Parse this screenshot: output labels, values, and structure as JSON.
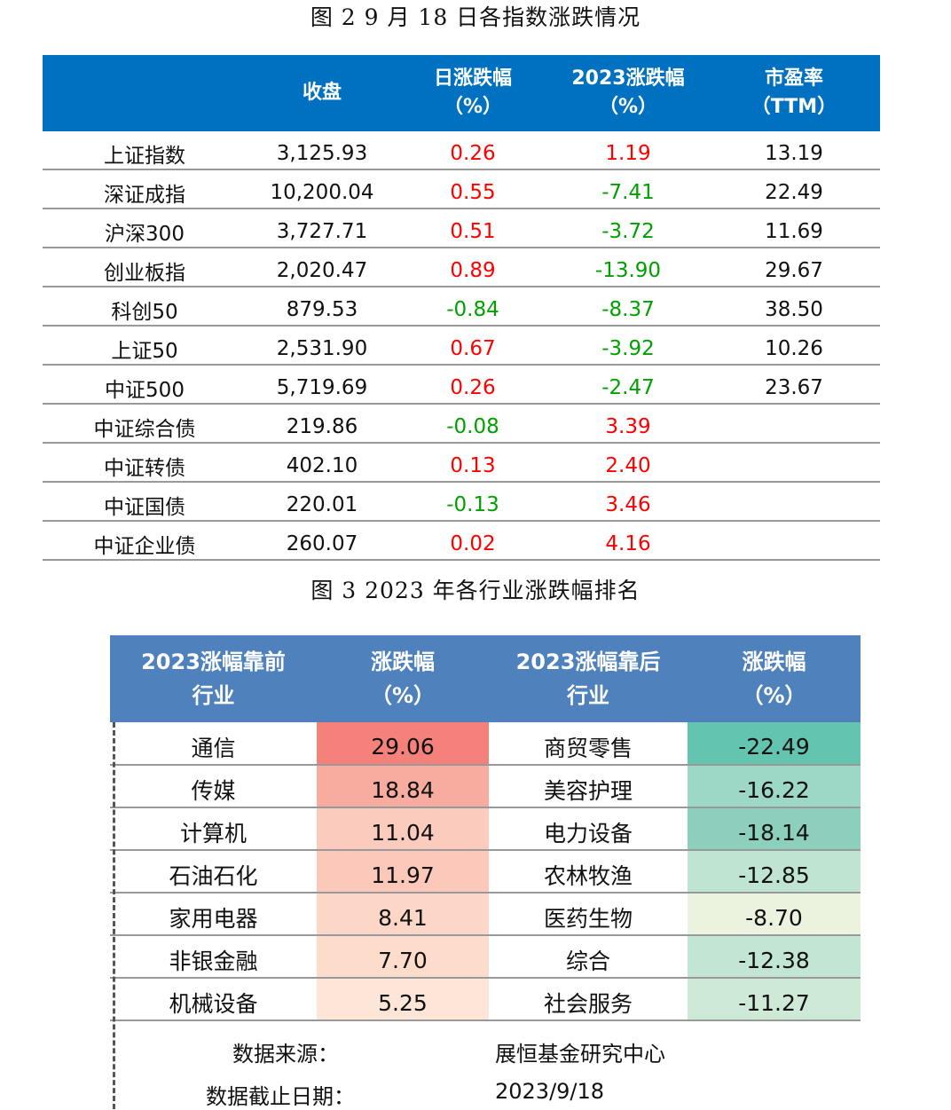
{
  "fig2": {
    "caption": "图 2   9 月 18 日各指数涨跌情况",
    "headers": [
      "",
      "收盘",
      "日涨跌幅\n（%）",
      "2023涨跌幅\n（%）",
      "市盈率\n（TTM）"
    ],
    "rows": [
      [
        "上证指数",
        "3,125.93",
        "0.26",
        "1.19",
        "13.19"
      ],
      [
        "深证成指",
        "10,200.04",
        "0.55",
        "-7.41",
        "22.49"
      ],
      [
        "沪深300",
        "3,727.71",
        "0.51",
        "-3.72",
        "11.69"
      ],
      [
        "创业板指",
        "2,020.47",
        "0.89",
        "-13.90",
        "29.67"
      ],
      [
        "科创50",
        "879.53",
        "-0.84",
        "-8.37",
        "38.50"
      ],
      [
        "上证50",
        "2,531.90",
        "0.67",
        "-3.92",
        "10.26"
      ],
      [
        "中证500",
        "5,719.69",
        "0.26",
        "-2.47",
        "23.67"
      ],
      [
        "中证综合债",
        "219.86",
        "-0.08",
        "3.39",
        ""
      ],
      [
        "中证转债",
        "402.10",
        "0.13",
        "2.40",
        ""
      ],
      [
        "中证国债",
        "220.01",
        "-0.13",
        "3.46",
        ""
      ],
      [
        "中证企业债",
        "260.07",
        "0.02",
        "4.16",
        ""
      ]
    ],
    "colors": {
      "header": "#0070c0",
      "up": "#ff0000",
      "down": "#00a000"
    }
  },
  "fig3": {
    "caption": "图 3   2023 年各行业涨跌幅排名",
    "headers": [
      "2023涨幅靠前\n行业",
      "涨跌幅\n（%）",
      "2023涨幅靠后\n行业",
      "涨跌幅\n（%）"
    ],
    "rows": [
      [
        "通信",
        "29.06",
        "#f4827a",
        "商贸零售",
        "-22.49",
        "#63c4b0"
      ],
      [
        "传媒",
        "18.84",
        "#f8ab9f",
        "美容护理",
        "-16.22",
        "#9dd7c5"
      ],
      [
        "计算机",
        "11.04",
        "#fbcbbd",
        "电力设备",
        "-18.14",
        "#8ccfbd"
      ],
      [
        "石油石化",
        "11.97",
        "#fbc8b9",
        "农林牧渔",
        "-12.85",
        "#c0e4d2"
      ],
      [
        "家用电器",
        "8.41",
        "#fcd6c6",
        "医药生物",
        "-8.70",
        "#ebf2de"
      ],
      [
        "非银金融",
        "7.70",
        "#fddccc",
        "综合",
        "-12.38",
        "#c3e5d3"
      ],
      [
        "机械设备",
        "5.25",
        "#fde6d7",
        "社会服务",
        "-11.27",
        "#cfe9d7"
      ]
    ],
    "header_color": "#4f81bd",
    "source_label": "数据来源：",
    "source": "展恒基金研究中心",
    "date_label": "数据截止日期：",
    "date": "2023/9/18"
  }
}
